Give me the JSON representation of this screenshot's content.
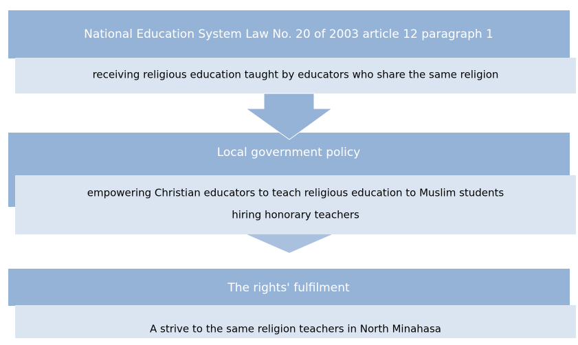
{
  "blocks": [
    {
      "header": "National Education System Law No. 20 of 2003 article 12 paragraph 1",
      "lines": [
        "receiving religious education taught by educators who share the same religion"
      ]
    },
    {
      "header": "Local government policy",
      "lines": [
        "empowering Christian educators to teach religious education to Muslim students",
        "hiring honorary teachers"
      ]
    },
    {
      "header": "The rights' fulfilment",
      "lines": [
        "A strive to the same religion teachers in North Minahasa"
      ]
    }
  ]
}
